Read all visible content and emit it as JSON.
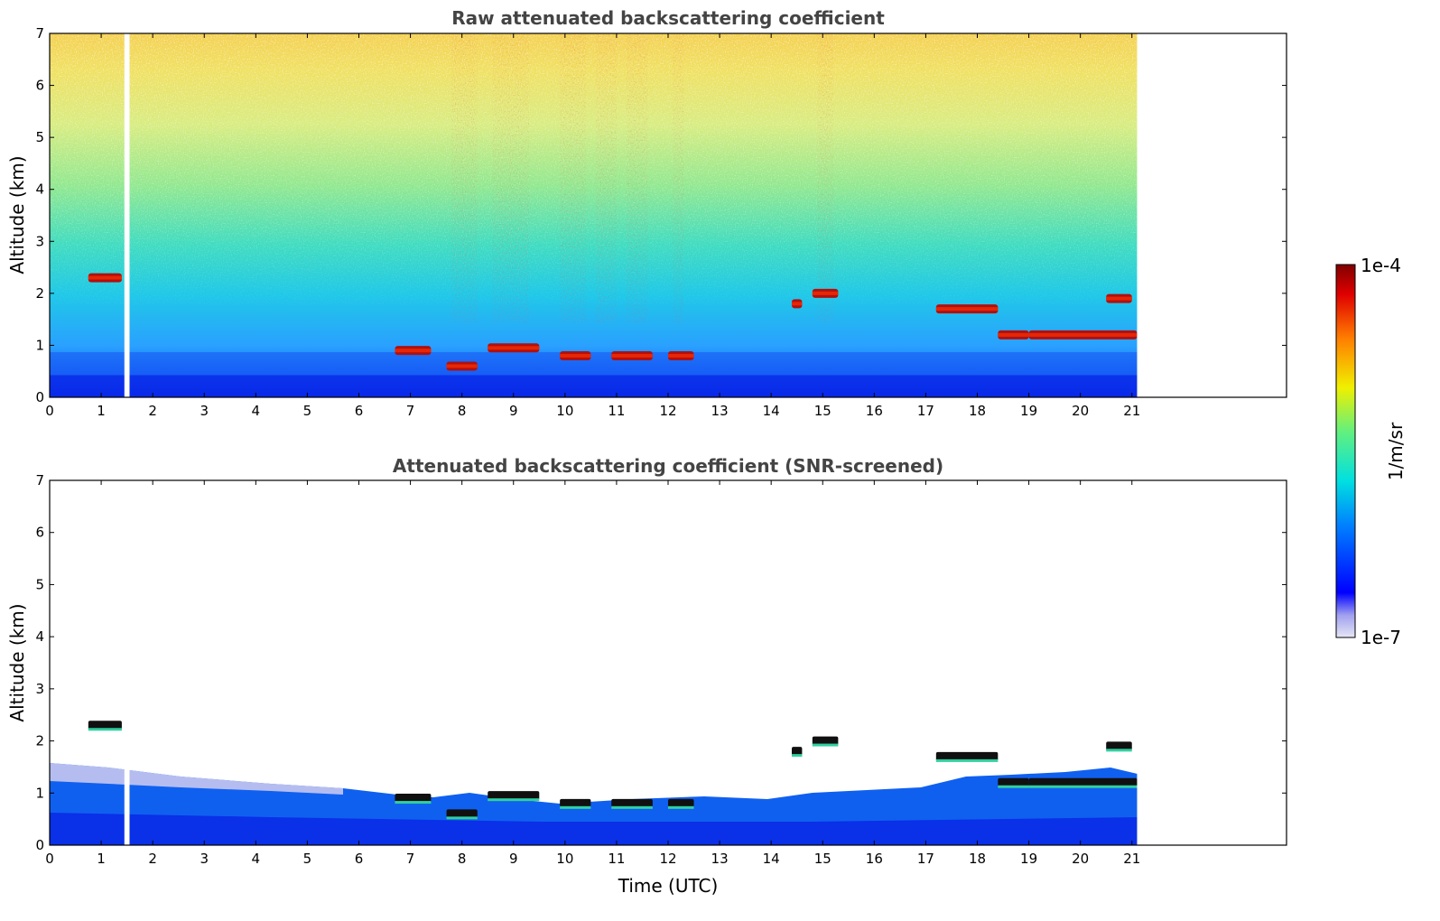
{
  "chart_data": [
    {
      "type": "heatmap",
      "title": "Raw attenuated backscattering coefficient",
      "ylabel": "Altitude (km)",
      "xlabel": "",
      "xlim": [
        0,
        24
      ],
      "ylim": [
        0,
        7
      ],
      "xticks": [
        0,
        1,
        2,
        3,
        4,
        5,
        6,
        7,
        8,
        9,
        10,
        11,
        12,
        13,
        14,
        15,
        16,
        17,
        18,
        19,
        20,
        21
      ],
      "yticks": [
        0,
        1,
        2,
        3,
        4,
        5,
        6,
        7
      ],
      "data_time_range": [
        0,
        21.1
      ],
      "data_gaps": [
        [
          1.45,
          1.55
        ]
      ],
      "cloud_layers": [
        {
          "t0": 0.75,
          "t1": 1.4,
          "alt": 2.3
        },
        {
          "t0": 6.7,
          "t1": 7.4,
          "alt": 0.9
        },
        {
          "t0": 7.7,
          "t1": 8.3,
          "alt": 0.6
        },
        {
          "t0": 8.5,
          "t1": 9.5,
          "alt": 0.95
        },
        {
          "t0": 9.9,
          "t1": 10.5,
          "alt": 0.8
        },
        {
          "t0": 10.9,
          "t1": 11.7,
          "alt": 0.8
        },
        {
          "t0": 12.0,
          "t1": 12.5,
          "alt": 0.8
        },
        {
          "t0": 14.4,
          "t1": 14.6,
          "alt": 1.8
        },
        {
          "t0": 14.8,
          "t1": 15.3,
          "alt": 2.0
        },
        {
          "t0": 17.2,
          "t1": 18.4,
          "alt": 1.7
        },
        {
          "t0": 18.4,
          "t1": 19.0,
          "alt": 1.2
        },
        {
          "t0": 19.0,
          "t1": 21.1,
          "alt": 1.2
        },
        {
          "t0": 20.5,
          "t1": 21.0,
          "alt": 1.9
        }
      ]
    },
    {
      "type": "heatmap",
      "title": "Attenuated backscattering coefficient (SNR-screened)",
      "ylabel": "Altitude (km)",
      "xlabel": "Time (UTC)",
      "xlim": [
        0,
        24
      ],
      "ylim": [
        0,
        7
      ],
      "xticks": [
        0,
        1,
        2,
        3,
        4,
        5,
        6,
        7,
        8,
        9,
        10,
        11,
        12,
        13,
        14,
        15,
        16,
        17,
        18,
        19,
        20,
        21
      ],
      "yticks": [
        0,
        1,
        2,
        3,
        4,
        5,
        6,
        7
      ],
      "data_time_range": [
        0,
        21.1
      ],
      "data_gaps": [
        [
          1.45,
          1.55
        ]
      ],
      "cloud_layers": [
        {
          "t0": 0.75,
          "t1": 1.4,
          "alt": 2.3
        },
        {
          "t0": 6.7,
          "t1": 7.4,
          "alt": 0.9
        },
        {
          "t0": 7.7,
          "t1": 8.3,
          "alt": 0.6
        },
        {
          "t0": 8.5,
          "t1": 9.5,
          "alt": 0.95
        },
        {
          "t0": 9.9,
          "t1": 10.5,
          "alt": 0.8
        },
        {
          "t0": 10.9,
          "t1": 11.7,
          "alt": 0.8
        },
        {
          "t0": 12.0,
          "t1": 12.5,
          "alt": 0.8
        },
        {
          "t0": 14.4,
          "t1": 14.6,
          "alt": 1.8
        },
        {
          "t0": 14.8,
          "t1": 15.3,
          "alt": 2.0
        },
        {
          "t0": 17.2,
          "t1": 18.4,
          "alt": 1.7
        },
        {
          "t0": 18.4,
          "t1": 19.0,
          "alt": 1.2
        },
        {
          "t0": 19.0,
          "t1": 21.1,
          "alt": 1.2
        },
        {
          "t0": 20.5,
          "t1": 21.0,
          "alt": 1.9
        }
      ]
    }
  ],
  "colorbar": {
    "label": "1/m/sr",
    "max_label": "1e-4",
    "min_label": "1e-7",
    "colormap": [
      "#e6e6f5",
      "#b4b4f0",
      "#8080f0",
      "#0000ff",
      "#0050ff",
      "#00a0ff",
      "#00e0e0",
      "#40f0a0",
      "#a0f040",
      "#f0f000",
      "#ffb000",
      "#ff5000",
      "#e00000",
      "#800000"
    ]
  }
}
